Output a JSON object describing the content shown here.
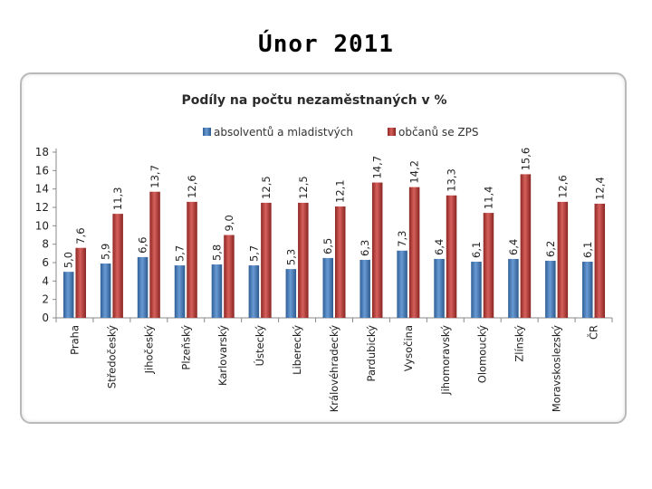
{
  "page": {
    "title": "Únor 2011"
  },
  "chart_data": {
    "type": "bar",
    "title": "Podíly na počtu nezaměstnaných v %",
    "categories": [
      "Praha",
      "Středočeský",
      "Jihočeský",
      "Plzeňský",
      "Karlovarský",
      "Ústecký",
      "Liberecký",
      "Královéhradecký",
      "Pardubický",
      "Vysočina",
      "Jihomoravský",
      "Olomoucký",
      "Zlínský",
      "Moravskoslezský",
      "ČR"
    ],
    "series": [
      {
        "name": "absolventů a mladistvých",
        "color": "#4f81bd",
        "values": [
          5.0,
          5.9,
          6.6,
          5.7,
          5.8,
          5.7,
          5.3,
          6.5,
          6.3,
          7.3,
          6.4,
          6.1,
          6.4,
          6.2,
          6.1
        ],
        "labels": [
          "5,0",
          "5,9",
          "6,6",
          "5,7",
          "5,8",
          "5,7",
          "5,3",
          "6,5",
          "6,3",
          "7,3",
          "6,4",
          "6,1",
          "6,4",
          "6,2",
          "6,1"
        ]
      },
      {
        "name": "občanů se ZPS",
        "color": "#c0504d",
        "values": [
          7.6,
          11.3,
          13.7,
          12.6,
          9.0,
          12.5,
          12.5,
          12.1,
          14.7,
          14.2,
          13.3,
          11.4,
          15.6,
          12.6,
          12.4
        ],
        "labels": [
          "7,6",
          "11,3",
          "13,7",
          "12,6",
          "9,0",
          "12,5",
          "12,5",
          "12,1",
          "14,7",
          "14,2",
          "13,3",
          "11,4",
          "15,6",
          "12,6",
          "12,4"
        ]
      }
    ],
    "ylim": [
      0,
      18
    ],
    "yticks": [
      0,
      2,
      4,
      6,
      8,
      10,
      12,
      14,
      16,
      18
    ],
    "legend": "top",
    "grid": false
  }
}
